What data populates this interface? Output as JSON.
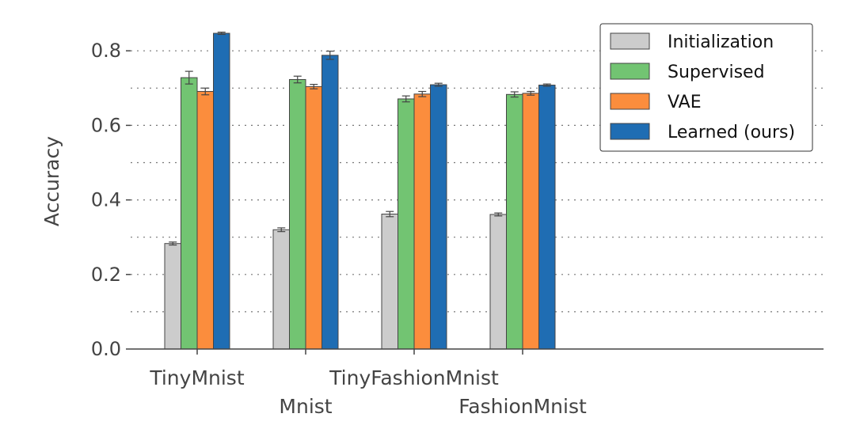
{
  "chart_data": {
    "type": "bar",
    "ylabel": "Accuracy",
    "ylim": [
      0,
      0.85
    ],
    "yticks": [
      "0.0",
      "0.2",
      "0.4",
      "0.6",
      "0.8"
    ],
    "grid": true,
    "legend_position": "top-right",
    "categories": [
      "TinyMnist",
      "Mnist",
      "TinyFashionMnist",
      "FashionMnist"
    ],
    "series": [
      {
        "name": "Initialization",
        "color": "#cccccc",
        "values": [
          0.283,
          0.32,
          0.362,
          0.361
        ],
        "errors": [
          0.004,
          0.005,
          0.007,
          0.004
        ]
      },
      {
        "name": "Supervised",
        "color": "#72c472",
        "values": [
          0.728,
          0.723,
          0.671,
          0.683
        ],
        "errors": [
          0.017,
          0.009,
          0.008,
          0.007
        ]
      },
      {
        "name": "VAE",
        "color": "#fb8d3d",
        "values": [
          0.691,
          0.704,
          0.684,
          0.686
        ],
        "errors": [
          0.009,
          0.006,
          0.007,
          0.005
        ]
      },
      {
        "name": "Learned (ours)",
        "color": "#1f6db3",
        "values": [
          0.847,
          0.788,
          0.709,
          0.708
        ],
        "errors": [
          0.003,
          0.011,
          0.004,
          0.003
        ]
      }
    ]
  }
}
